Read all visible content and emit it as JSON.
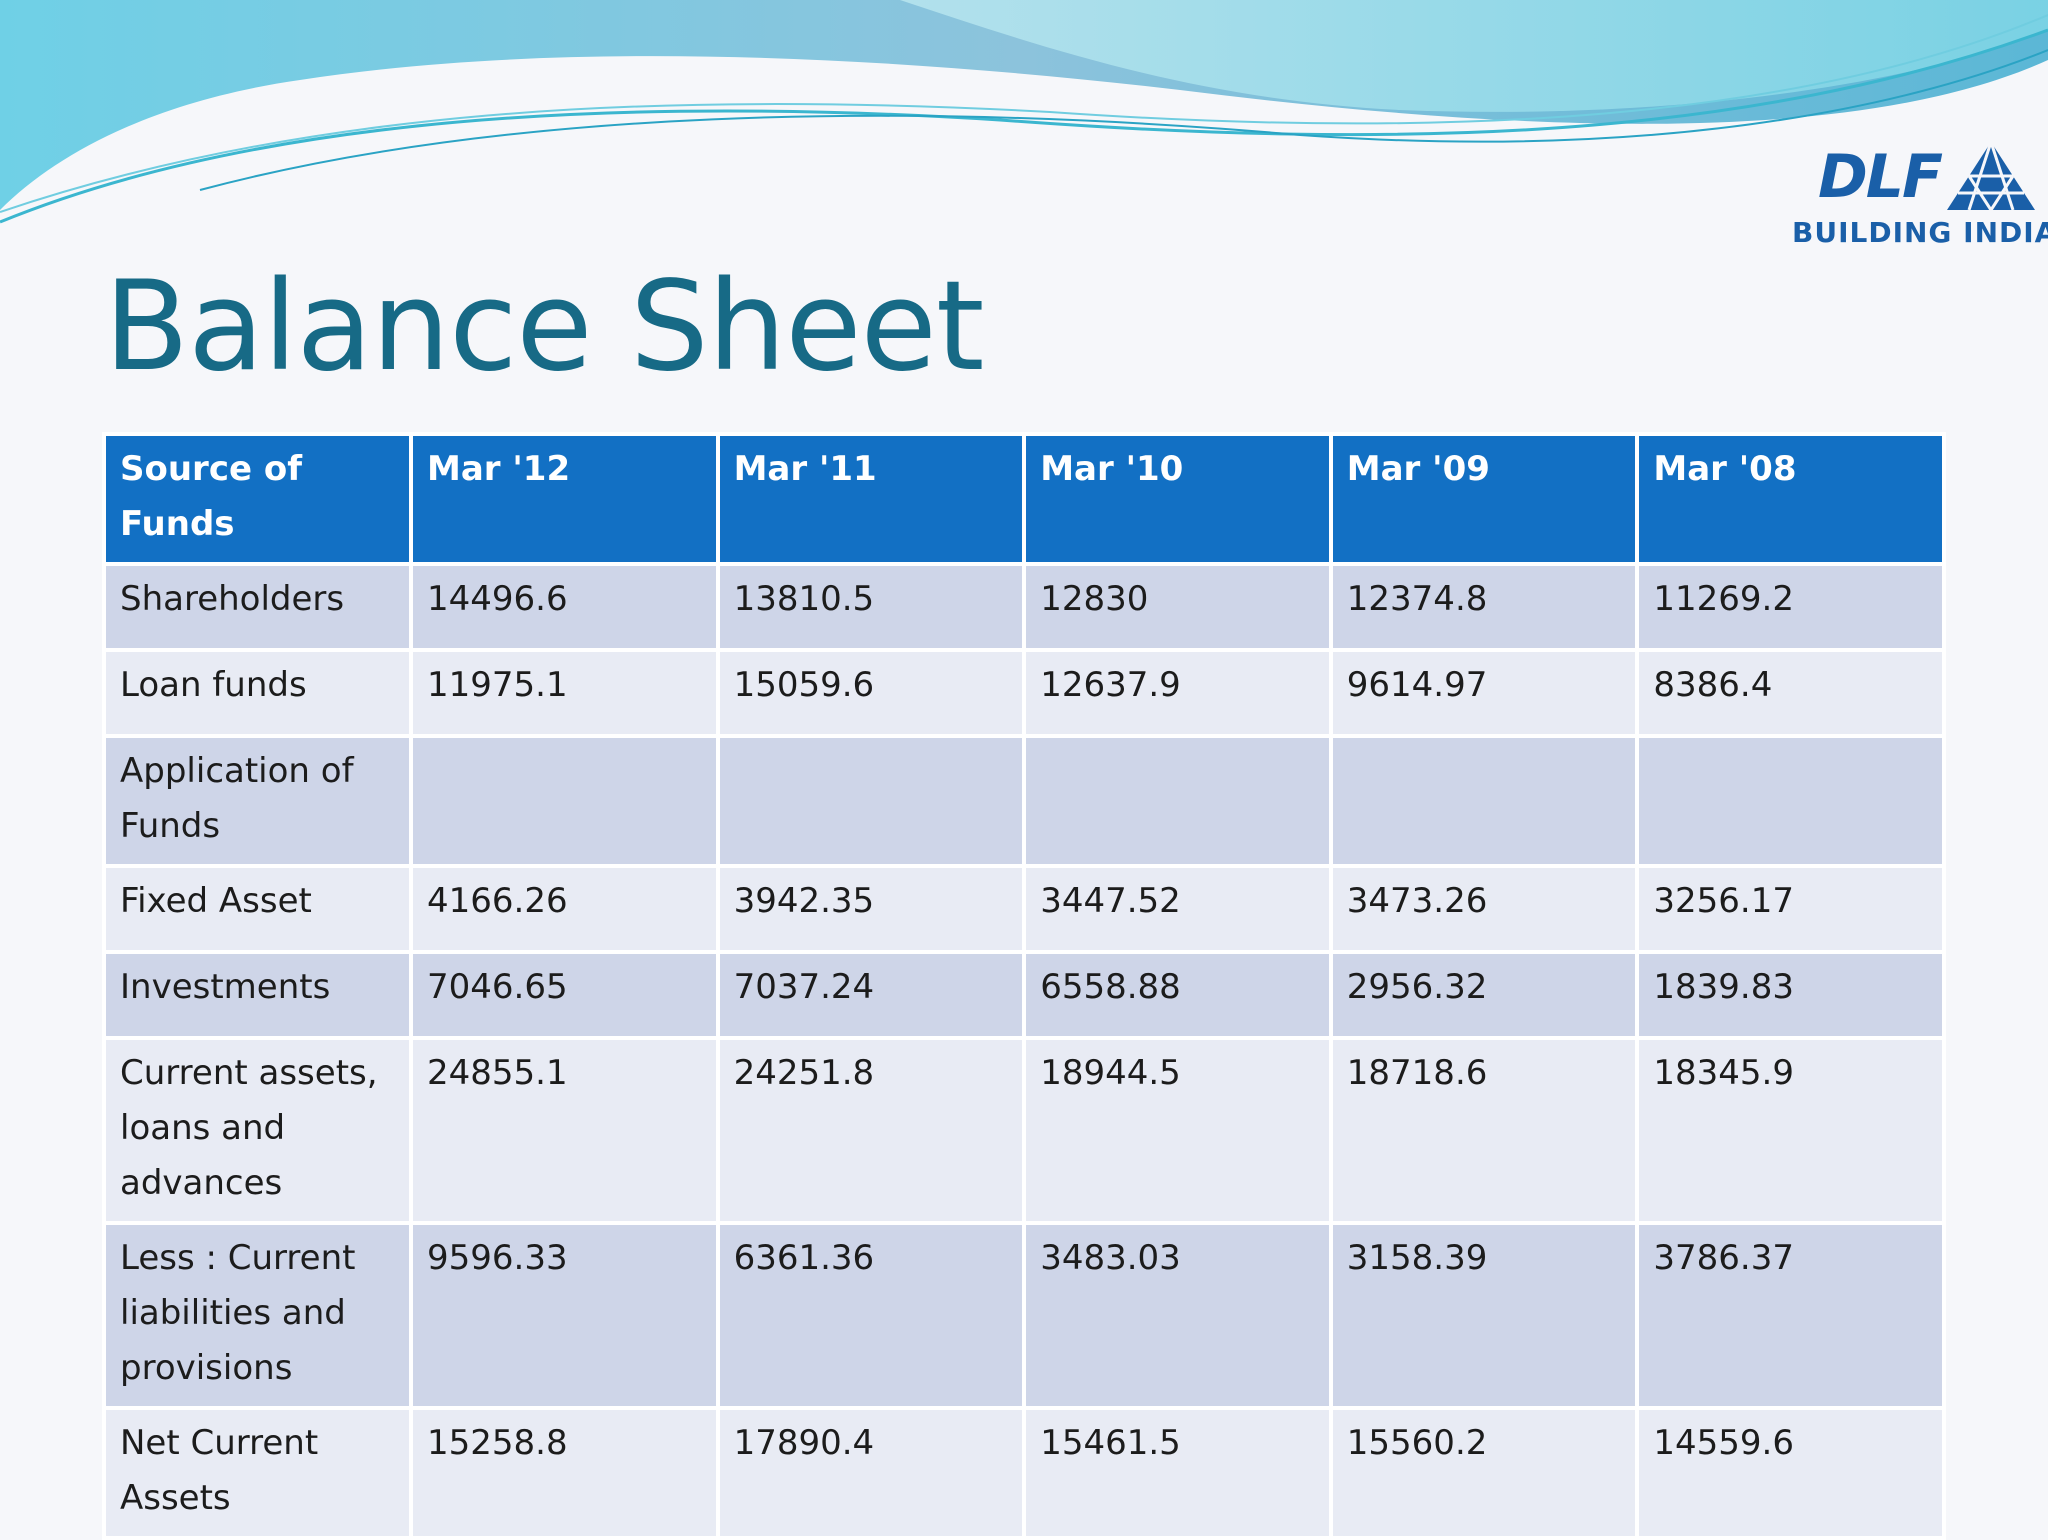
{
  "slide": {
    "title": "Balance Sheet"
  },
  "logo": {
    "word": "DLF",
    "tagline": "BUILDING INDIA"
  },
  "colors": {
    "header_blue": "#1270c4",
    "title_teal": "#176a86",
    "row_dark": "#ced5e8",
    "row_light": "#e8ebf4",
    "logo_blue": "#1a5fa8"
  },
  "table": {
    "headers": [
      "Source of Funds",
      "Mar '12",
      "Mar '11",
      "Mar '10",
      "Mar '09",
      "Mar '08"
    ],
    "rows": [
      [
        "Shareholders",
        "14496.6",
        "13810.5",
        "12830",
        "12374.8",
        "11269.2"
      ],
      [
        "Loan funds",
        "11975.1",
        "15059.6",
        "12637.9",
        "9614.97",
        "8386.4"
      ],
      [
        "Application of Funds",
        "",
        "",
        "",
        "",
        ""
      ],
      [
        "Fixed Asset",
        "4166.26",
        "3942.35",
        "3447.52",
        "3473.26",
        "3256.17"
      ],
      [
        "Investments",
        "7046.65",
        "7037.24",
        "6558.88",
        "2956.32",
        "1839.83"
      ],
      [
        "Current assets, loans and advances",
        "24855.1",
        "24251.8",
        "18944.5",
        "18718.6",
        "18345.9"
      ],
      [
        "Less : Current liabilities and provisions",
        "9596.33",
        "6361.36",
        "3483.03",
        "3158.39",
        "3786.37"
      ],
      [
        "Net Current Assets",
        "15258.8",
        "17890.4",
        "15461.5",
        "15560.2",
        "14559.6"
      ]
    ]
  }
}
